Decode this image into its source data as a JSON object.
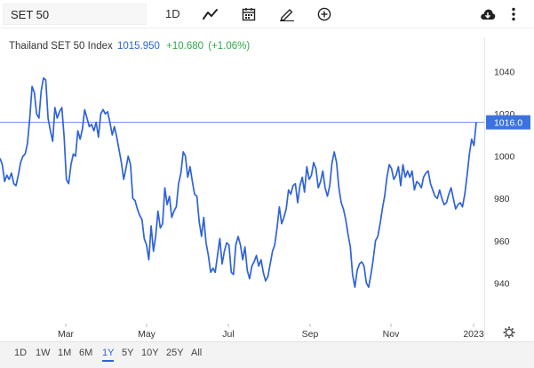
{
  "toolbar": {
    "symbol_value": "SET 50",
    "interval_label": "1D",
    "icons": [
      "line-chart-type-icon",
      "calendar-icon",
      "draw-pencil-icon",
      "add-plus-icon",
      "cloud-download-icon",
      "more-vertical-icon"
    ]
  },
  "legend": {
    "name": "Thailand SET 50 Index",
    "price": "1015.950",
    "change": "+10.680",
    "change_pct": "(+1.06%)"
  },
  "colors": {
    "line": "#2f63d8",
    "price_tag": "#3b73e0",
    "change_positive": "#2fa84a"
  },
  "chart_data": {
    "type": "line",
    "x_labels": [
      "Mar",
      "May",
      "Jul",
      "Sep",
      "Nov",
      "2023"
    ],
    "y_ticks": [
      940,
      960,
      980,
      1000,
      1020,
      1040
    ],
    "ylim": [
      925,
      1052
    ],
    "last_value_label": "1016.0",
    "series": [
      {
        "values": [
          999,
          996,
          988,
          991,
          989,
          992,
          987,
          986,
          991,
          997,
          1000,
          1001,
          1006,
          1018,
          1033,
          1030,
          1020,
          1018,
          1031,
          1037,
          1036,
          1018,
          1012,
          1007,
          1023,
          1018,
          1021,
          1023,
          1009,
          989,
          987,
          996,
          1001,
          1000,
          1012,
          1008,
          1013,
          1022,
          1018,
          1014,
          1015,
          1012,
          1016,
          1009,
          1020,
          1022,
          1020,
          1021,
          1016,
          1010,
          1014,
          1009,
          1003,
          997,
          989,
          994,
          1000,
          996,
          980,
          979,
          975,
          972,
          970,
          961,
          958,
          951,
          967,
          955,
          962,
          974,
          966,
          968,
          985,
          977,
          981,
          971,
          974,
          976,
          987,
          992,
          1002,
          1000,
          990,
          995,
          988,
          982,
          981,
          969,
          962,
          971,
          959,
          953,
          945,
          947,
          945,
          953,
          961,
          949,
          955,
          959,
          958,
          945,
          944,
          958,
          962,
          958,
          951,
          957,
          946,
          942,
          948,
          950,
          953,
          948,
          951,
          945,
          941,
          943,
          949,
          955,
          958,
          966,
          976,
          968,
          971,
          975,
          984,
          982,
          986,
          987,
          978,
          986,
          990,
          983,
          995,
          989,
          991,
          997,
          994,
          985,
          988,
          993,
          985,
          981,
          986,
          997,
          1002,
          997,
          985,
          978,
          975,
          970,
          963,
          957,
          944,
          938,
          946,
          949,
          950,
          948,
          940,
          938,
          944,
          951,
          960,
          962,
          968,
          975,
          981,
          990,
          996,
          994,
          989,
          991,
          995,
          986,
          996,
          990,
          993,
          990,
          993,
          984,
          988,
          987,
          985,
          990,
          992,
          993,
          987,
          984,
          981,
          980,
          984,
          980,
          977,
          978,
          982,
          985,
          980,
          975,
          977,
          978,
          976,
          982,
          991,
          1001,
          1008,
          1005,
          1016
        ]
      }
    ]
  },
  "range_buttons": [
    "1D",
    "1W",
    "1M",
    "6M",
    "1Y",
    "5Y",
    "10Y",
    "25Y",
    "All"
  ],
  "active_range": "1Y"
}
